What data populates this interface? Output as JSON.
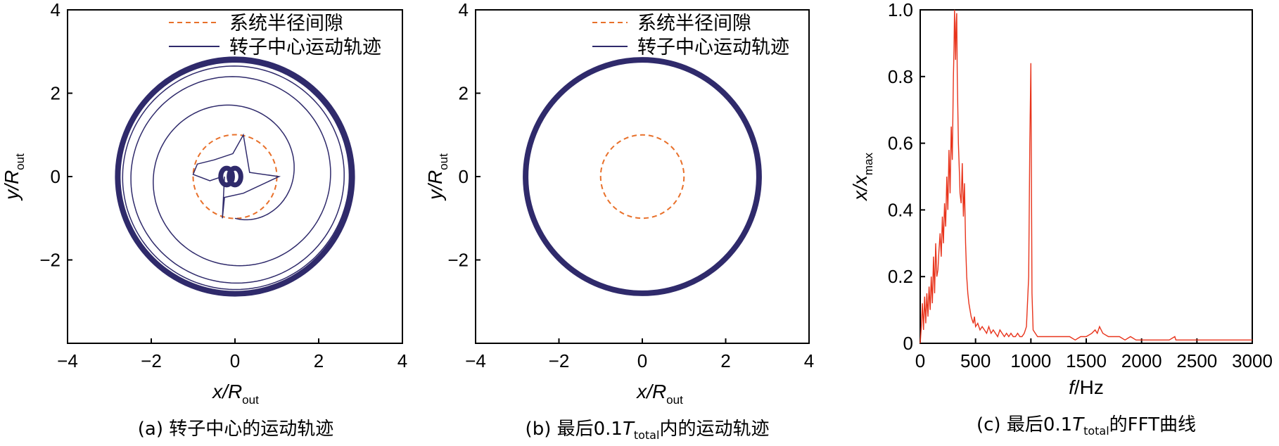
{
  "chart_data": [
    {
      "type": "line",
      "caption_prefix": "(a) ",
      "caption": "转子中心的运动轨迹",
      "xlabel_main": "x/R",
      "xlabel_sub": "out",
      "ylabel_main": "y/R",
      "ylabel_sub": "out",
      "xlim": [
        -4,
        4
      ],
      "ylim": [
        -4,
        4
      ],
      "xticks": [
        "−4",
        "−2",
        "0",
        "2",
        "4"
      ],
      "yticks": [
        "4",
        "2",
        "0",
        "−2"
      ],
      "legend_position": "top",
      "colors": {
        "clearance": "#e8702a",
        "orbit": "#2f2a6b"
      },
      "series": [
        {
          "name": "系统半径间隙",
          "style": "dashed",
          "radius": 1.0
        },
        {
          "name": "转子中心运动轨迹",
          "style": "solid",
          "steady_radius": 2.8
        }
      ]
    },
    {
      "type": "line",
      "caption_prefix": "(b) 最后0.1",
      "caption_T": "T",
      "caption_sub": "total",
      "caption_suffix": "内的运动轨迹",
      "xlabel_main": "x/R",
      "xlabel_sub": "out",
      "ylabel_main": "y/R",
      "ylabel_sub": "out",
      "xlim": [
        -4,
        4
      ],
      "ylim": [
        -4,
        4
      ],
      "xticks": [
        "−4",
        "−2",
        "0",
        "2",
        "4"
      ],
      "yticks": [
        "4",
        "2",
        "0",
        "−2"
      ],
      "legend_position": "top",
      "series": [
        {
          "name": "系统半径间隙",
          "style": "dashed",
          "radius": 1.0
        },
        {
          "name": "转子中心运动轨迹",
          "style": "solid",
          "radius": 2.8
        }
      ]
    },
    {
      "type": "line",
      "caption_prefix": "(c) 最后0.1",
      "caption_T": "T",
      "caption_sub": "total",
      "caption_suffix": "的FFT曲线",
      "xlabel_main": "f",
      "xlabel_rest": "/Hz",
      "ylabel_main": "x/x",
      "ylabel_sub": "max",
      "xlim": [
        0,
        3000
      ],
      "ylim": [
        0,
        1.0
      ],
      "xticks": [
        "0",
        "500",
        "1000",
        "1500",
        "2000",
        "2500",
        "3000"
      ],
      "yticks": [
        "1.0",
        "0.8",
        "0.6",
        "0.4",
        "0.2",
        "0"
      ],
      "color": "#e8341c",
      "x": [
        0,
        10,
        20,
        30,
        40,
        50,
        60,
        70,
        80,
        90,
        100,
        110,
        120,
        130,
        140,
        150,
        160,
        170,
        180,
        190,
        200,
        210,
        220,
        230,
        240,
        250,
        260,
        270,
        280,
        290,
        300,
        305,
        310,
        315,
        320,
        325,
        330,
        335,
        340,
        345,
        350,
        355,
        360,
        370,
        380,
        390,
        400,
        410,
        420,
        430,
        440,
        450,
        460,
        470,
        480,
        490,
        500,
        520,
        540,
        560,
        580,
        600,
        620,
        640,
        660,
        680,
        700,
        720,
        740,
        760,
        780,
        800,
        820,
        840,
        860,
        880,
        900,
        920,
        940,
        960,
        980,
        990,
        1000,
        1005,
        1010,
        1020,
        1040,
        1060,
        1080,
        1100,
        1150,
        1200,
        1250,
        1300,
        1350,
        1400,
        1450,
        1500,
        1550,
        1580,
        1600,
        1620,
        1650,
        1700,
        1750,
        1800,
        1850,
        1900,
        1950,
        2000,
        2050,
        2100,
        2150,
        2200,
        2250,
        2300,
        2310,
        2350,
        2400,
        2450,
        2500,
        2550,
        2600,
        2650,
        2700,
        2750,
        2800,
        2850,
        2900,
        2950,
        3000
      ],
      "y": [
        0.0,
        0.05,
        0.12,
        0.04,
        0.14,
        0.06,
        0.15,
        0.08,
        0.17,
        0.1,
        0.2,
        0.12,
        0.26,
        0.15,
        0.3,
        0.2,
        0.22,
        0.28,
        0.33,
        0.26,
        0.38,
        0.3,
        0.42,
        0.35,
        0.5,
        0.4,
        0.58,
        0.45,
        0.65,
        0.55,
        0.8,
        0.88,
        1.0,
        0.92,
        0.85,
        0.96,
        0.99,
        0.8,
        0.7,
        0.6,
        0.55,
        0.5,
        0.45,
        0.42,
        0.54,
        0.38,
        0.48,
        0.3,
        0.2,
        0.15,
        0.12,
        0.1,
        0.08,
        0.07,
        0.06,
        0.08,
        0.05,
        0.06,
        0.04,
        0.05,
        0.04,
        0.03,
        0.05,
        0.03,
        0.04,
        0.03,
        0.02,
        0.04,
        0.03,
        0.02,
        0.03,
        0.02,
        0.03,
        0.02,
        0.02,
        0.03,
        0.02,
        0.02,
        0.03,
        0.05,
        0.2,
        0.6,
        0.84,
        0.5,
        0.15,
        0.04,
        0.03,
        0.02,
        0.02,
        0.02,
        0.02,
        0.02,
        0.02,
        0.02,
        0.02,
        0.01,
        0.02,
        0.02,
        0.03,
        0.04,
        0.03,
        0.05,
        0.03,
        0.02,
        0.02,
        0.02,
        0.01,
        0.02,
        0.01,
        0.01,
        0.01,
        0.01,
        0.01,
        0.01,
        0.01,
        0.02,
        0.01,
        0.01,
        0.01,
        0.01,
        0.01,
        0.01,
        0.01,
        0.01,
        0.01,
        0.01,
        0.01,
        0.01,
        0.01,
        0.01,
        0.01
      ]
    }
  ]
}
